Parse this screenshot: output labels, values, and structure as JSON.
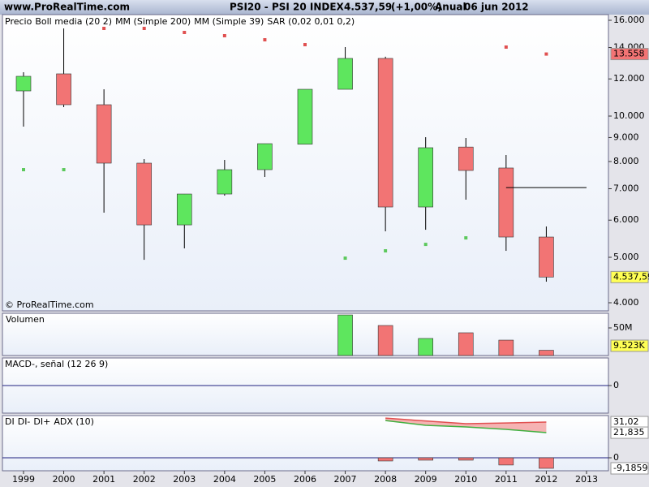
{
  "header": {
    "site": "www.ProRealTime.com",
    "instrument": "PSI20 - PSI 20 INDEX",
    "price": "4.537,59",
    "change": "(+1,00%)",
    "period": "Anual",
    "date": "06 jun 2012"
  },
  "watermark": "© ProRealTime.com",
  "chart_data": [
    {
      "type": "candlestick",
      "legend": [
        {
          "name": "Precio",
          "color": "#000000"
        },
        {
          "name": "Boll media (20 2)",
          "color": "#8000c0"
        },
        {
          "name": "MM (Simple 200)",
          "color": "#d85a5a"
        },
        {
          "name": "MM (Simple 39)",
          "color": "#d85a5a"
        },
        {
          "name": "SAR (0,02 0,01 0,2)",
          "color": "#d03030"
        }
      ],
      "categories": [
        "1999",
        "2000",
        "2001",
        "2002",
        "2003",
        "2004",
        "2005",
        "2006",
        "2007",
        "2008",
        "2009",
        "2010",
        "2011",
        "2012",
        "2013"
      ],
      "open": [
        11313,
        12302,
        10573,
        7937,
        5862,
        6821,
        7687,
        8710,
        11404,
        13270,
        6400,
        8590,
        7750,
        5523,
        null
      ],
      "high": [
        12399,
        15376,
        11404,
        8095,
        6821,
        8064,
        8733,
        11404,
        14029,
        13380,
        9015,
        8980,
        8259,
        5816,
        null
      ],
      "low": [
        9495,
        10448,
        6224,
        4939,
        5224,
        6767,
        7417,
        8710,
        11404,
        5680,
        5724,
        6634,
        5161,
        4436,
        null
      ],
      "close": [
        12155,
        10573,
        7937,
        5862,
        6821,
        7687,
        8733,
        11404,
        13270,
        6400,
        8561,
        7657,
        5523,
        4537.59,
        null
      ],
      "sar": [
        7687,
        7687,
        15376,
        15376,
        15073,
        14834,
        14541,
        14197,
        4979,
        5161,
        5327,
        5500,
        14029,
        13558,
        null
      ],
      "colors": {
        "up": "#5ee65e",
        "down": "#f27474",
        "sar_up": "#5cc85c",
        "sar_down": "#e05050"
      },
      "hline": 7040,
      "log": true,
      "ylim": [
        3844,
        16453
      ],
      "yticks": [
        {
          "value": 4000,
          "label": "4.000"
        },
        {
          "value": 5000,
          "label": "5.000"
        },
        {
          "value": 6000,
          "label": "6.000"
        },
        {
          "value": 7000,
          "label": "7.000"
        },
        {
          "value": 8000,
          "label": "8.000"
        },
        {
          "value": 9000,
          "label": "9.000"
        },
        {
          "value": 10000,
          "label": "10.000"
        },
        {
          "value": 12000,
          "label": "12.000"
        },
        {
          "value": 14000,
          "label": "14.000"
        },
        {
          "value": 16000,
          "label": "16.000"
        }
      ],
      "price_labels": [
        {
          "value": 13558,
          "label": "13.558",
          "color": "#f27474"
        },
        {
          "value": 4537.59,
          "label": "4.537,59",
          "color": "#ffff55"
        }
      ]
    },
    {
      "type": "bar",
      "series": [
        {
          "name": "Volumen",
          "color": "#c04040",
          "values": [
            null,
            null,
            null,
            null,
            null,
            null,
            null,
            null,
            73.5,
            54.4,
            30.9,
            41.2,
            27.9,
            9.5,
            null
          ]
        }
      ],
      "ylim": [
        0,
        76.5
      ],
      "yticks": [
        {
          "value": 50,
          "label": "50M"
        }
      ],
      "last_label": "9.523K"
    },
    {
      "type": "line",
      "title": "MACD-, señal (12 26 9)",
      "title_color": "#40a040",
      "ylim": [
        -1,
        1
      ],
      "yticks": [
        0
      ],
      "series": []
    },
    {
      "type": "line",
      "title": "ADX (10)",
      "series": [
        {
          "name": "DI",
          "kind": "bar",
          "color": "#f27474",
          "values": [
            null,
            null,
            null,
            null,
            null,
            null,
            null,
            null,
            null,
            -2.8,
            -2.1,
            -2.1,
            -6.3,
            -9.1859,
            null
          ],
          "value_labels": [
            null,
            null,
            null,
            null,
            null,
            null,
            null,
            null,
            null,
            null,
            null,
            null,
            null,
            "-9,1859",
            null
          ]
        },
        {
          "name": "DI-",
          "kind": "line",
          "color": "#e05050",
          "values": [
            null,
            null,
            null,
            null,
            null,
            null,
            null,
            null,
            null,
            34.5,
            32.0,
            29.6,
            30.3,
            31.02,
            null
          ],
          "value_labels": [
            null,
            null,
            null,
            null,
            null,
            null,
            null,
            null,
            null,
            null,
            null,
            null,
            null,
            "31,02",
            null
          ]
        },
        {
          "name": "DI+",
          "kind": "line",
          "color": "#40b040",
          "values": [
            null,
            null,
            null,
            null,
            null,
            null,
            null,
            null,
            null,
            32.4,
            28.2,
            26.8,
            24.7,
            21.835,
            null
          ],
          "value_labels": [
            null,
            null,
            null,
            null,
            null,
            null,
            null,
            null,
            null,
            null,
            null,
            null,
            null,
            "21,835",
            null
          ]
        }
      ],
      "ylim": [
        -11.3,
        36.7
      ],
      "yticks": [
        0
      ]
    }
  ]
}
